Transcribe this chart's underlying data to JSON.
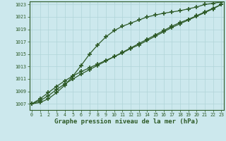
{
  "title": "Graphe pression niveau de la mer (hPa)",
  "x": [
    0,
    1,
    2,
    3,
    4,
    5,
    6,
    7,
    8,
    9,
    10,
    11,
    12,
    13,
    14,
    15,
    16,
    17,
    18,
    19,
    20,
    21,
    22,
    23
  ],
  "line1": [
    1007.0,
    1007.2,
    1007.8,
    1008.8,
    1010.0,
    1011.5,
    1013.2,
    1015.0,
    1016.5,
    1017.8,
    1018.8,
    1019.5,
    1020.0,
    1020.5,
    1021.0,
    1021.3,
    1021.6,
    1021.8,
    1022.0,
    1022.3,
    1022.6,
    1023.0,
    1023.2,
    1023.4
  ],
  "line2": [
    1007.0,
    1007.5,
    1008.3,
    1009.3,
    1010.2,
    1011.0,
    1011.8,
    1012.5,
    1013.2,
    1013.9,
    1014.6,
    1015.3,
    1016.0,
    1016.7,
    1017.4,
    1018.1,
    1018.8,
    1019.5,
    1020.1,
    1020.6,
    1021.2,
    1021.8,
    1022.4,
    1023.0
  ],
  "line3": [
    1007.0,
    1007.8,
    1008.8,
    1009.8,
    1010.7,
    1011.5,
    1012.2,
    1012.8,
    1013.4,
    1014.0,
    1014.6,
    1015.2,
    1015.9,
    1016.5,
    1017.2,
    1017.9,
    1018.6,
    1019.3,
    1019.9,
    1020.5,
    1021.1,
    1021.7,
    1022.3,
    1023.0
  ],
  "ylim": [
    1006.0,
    1023.5
  ],
  "yticks": [
    1007,
    1009,
    1011,
    1013,
    1015,
    1017,
    1019,
    1021,
    1023
  ],
  "xlim": [
    -0.3,
    23.3
  ],
  "line_color": "#2d5a27",
  "bg_color": "#cce8ed",
  "grid_color": "#b0d4d8",
  "title_color": "#2d5a27",
  "marker": "+",
  "marker_size": 5,
  "line_width": 0.9,
  "title_fontsize": 6.5,
  "tick_fontsize": 4.8
}
